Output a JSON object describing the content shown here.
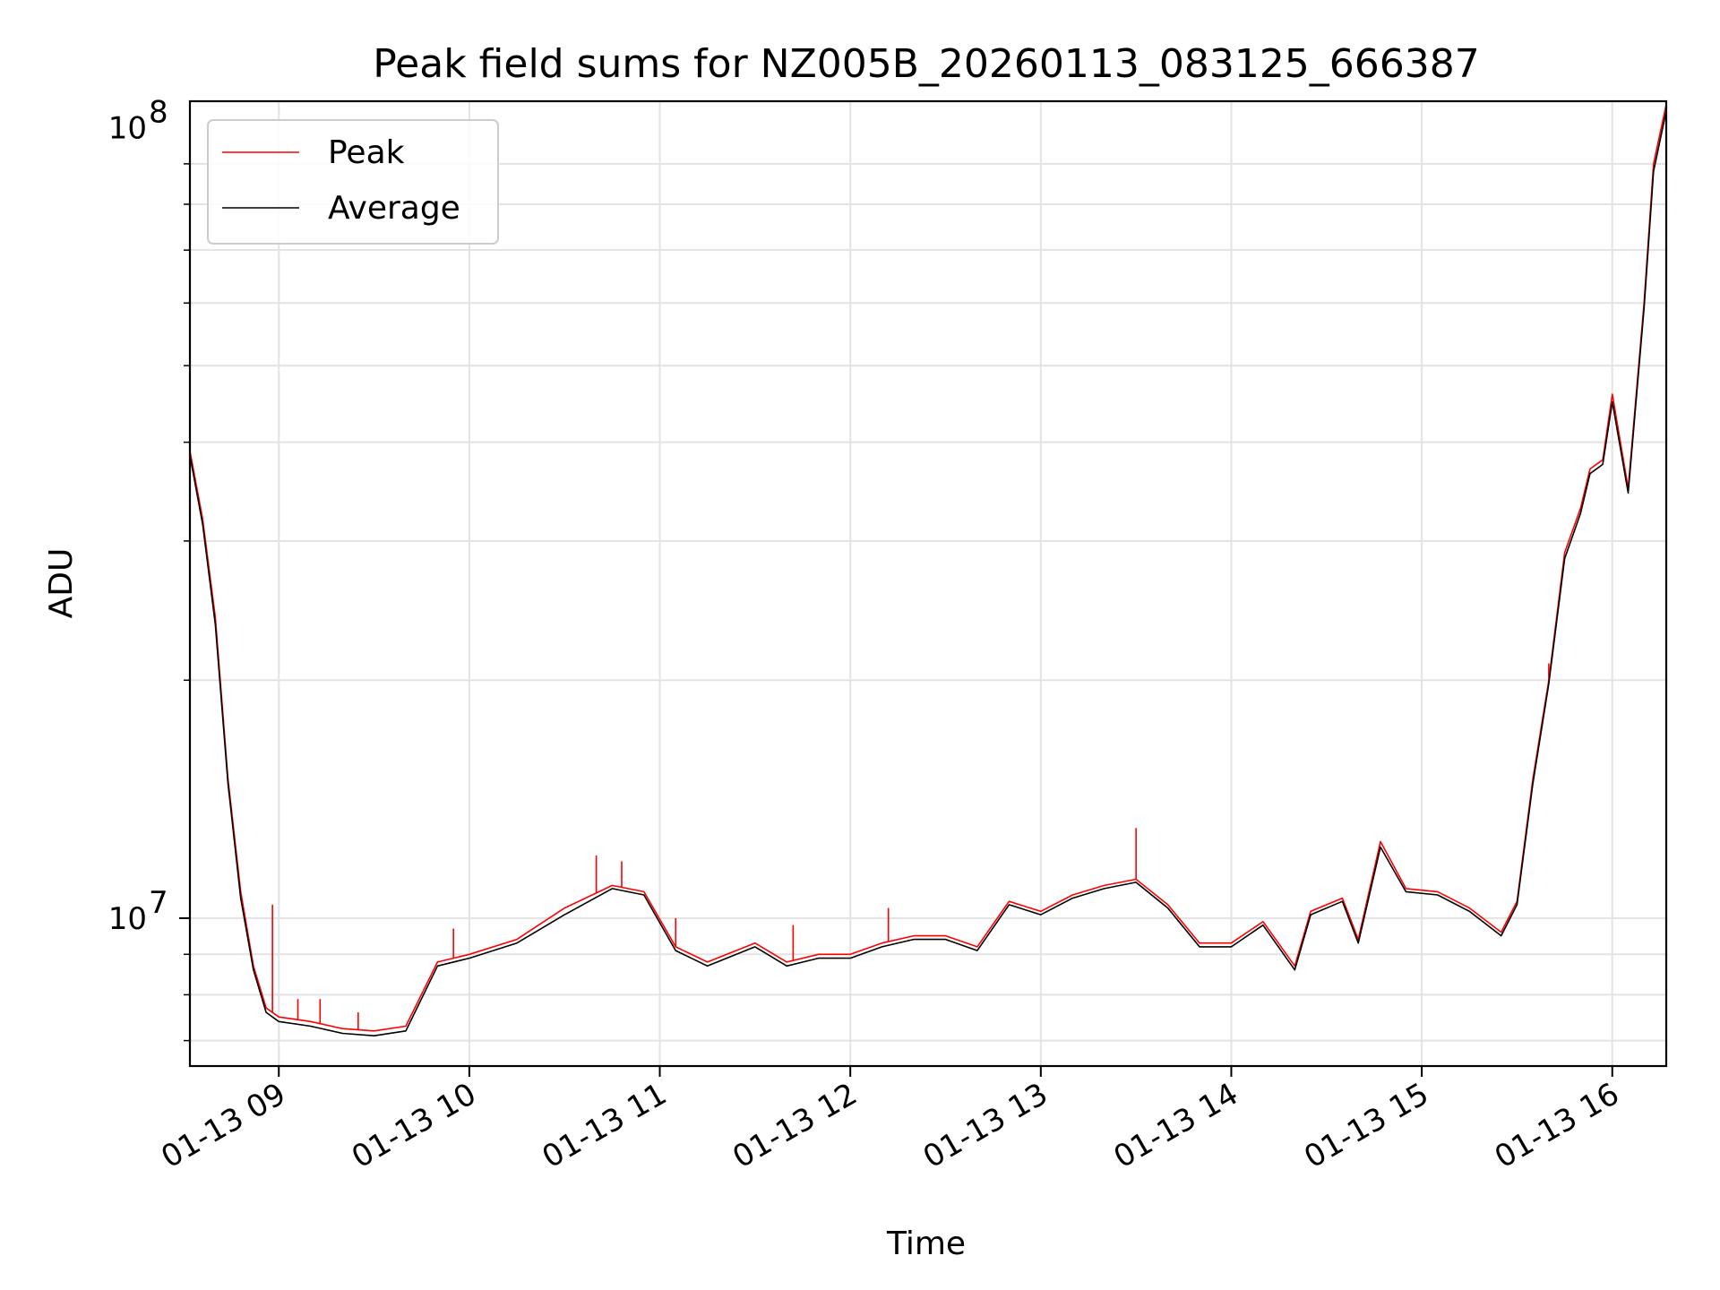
{
  "chart_data": {
    "type": "line",
    "title": "Peak field sums for NZ005B_20260113_083125_666387",
    "xlabel": "Time",
    "ylabel": "ADU",
    "yscale": "log",
    "ylim": [
      6500000,
      108000000
    ],
    "xlim": [
      "2026-01-13 08:32",
      "2026-01-13 16:17"
    ],
    "x_tick_labels": [
      "01-13 09",
      "01-13 10",
      "01-13 11",
      "01-13 12",
      "01-13 13",
      "01-13 14",
      "01-13 15",
      "01-13 16"
    ],
    "y_tick_labels": [
      {
        "base": "10",
        "exp": "7"
      },
      {
        "base": "10",
        "exp": "8"
      }
    ],
    "grid": true,
    "legend_position": "top-left",
    "colors": {
      "Peak": "#ff0000",
      "Average": "#000000"
    },
    "series": [
      {
        "name": "Peak",
        "x": [
          "2026-01-13 08:32",
          "2026-01-13 08:36",
          "2026-01-13 08:40",
          "2026-01-13 08:44",
          "2026-01-13 08:48",
          "2026-01-13 08:52",
          "2026-01-13 08:56",
          "2026-01-13 09:00",
          "2026-01-13 09:10",
          "2026-01-13 09:20",
          "2026-01-13 09:30",
          "2026-01-13 09:40",
          "2026-01-13 09:50",
          "2026-01-13 10:00",
          "2026-01-13 10:15",
          "2026-01-13 10:30",
          "2026-01-13 10:45",
          "2026-01-13 10:55",
          "2026-01-13 11:05",
          "2026-01-13 11:15",
          "2026-01-13 11:30",
          "2026-01-13 11:40",
          "2026-01-13 11:50",
          "2026-01-13 12:00",
          "2026-01-13 12:10",
          "2026-01-13 12:20",
          "2026-01-13 12:30",
          "2026-01-13 12:40",
          "2026-01-13 12:50",
          "2026-01-13 13:00",
          "2026-01-13 13:10",
          "2026-01-13 13:20",
          "2026-01-13 13:30",
          "2026-01-13 13:40",
          "2026-01-13 13:50",
          "2026-01-13 14:00",
          "2026-01-13 14:10",
          "2026-01-13 14:20",
          "2026-01-13 14:25",
          "2026-01-13 14:35",
          "2026-01-13 14:40",
          "2026-01-13 14:47",
          "2026-01-13 14:55",
          "2026-01-13 15:05",
          "2026-01-13 15:15",
          "2026-01-13 15:25",
          "2026-01-13 15:30",
          "2026-01-13 15:35",
          "2026-01-13 15:40",
          "2026-01-13 15:45",
          "2026-01-13 15:50",
          "2026-01-13 15:53",
          "2026-01-13 15:57",
          "2026-01-13 16:00",
          "2026-01-13 16:05",
          "2026-01-13 16:10",
          "2026-01-13 16:13",
          "2026-01-13 16:17"
        ],
        "y": [
          39000000,
          32000000,
          24000000,
          15000000,
          10800000,
          8700000,
          7700000,
          7500000,
          7400000,
          7250000,
          7200000,
          7300000,
          8800000,
          9000000,
          9400000,
          10300000,
          11000000,
          10800000,
          9200000,
          8800000,
          9300000,
          8800000,
          9000000,
          9000000,
          9300000,
          9500000,
          9500000,
          9200000,
          10500000,
          10200000,
          10700000,
          11000000,
          11200000,
          10400000,
          9300000,
          9300000,
          9900000,
          8700000,
          10200000,
          10600000,
          9400000,
          12500000,
          10900000,
          10800000,
          10300000,
          9600000,
          10500000,
          15000000,
          20000000,
          29000000,
          33000000,
          37000000,
          38000000,
          46000000,
          35000000,
          60000000,
          90000000,
          107000000
        ],
        "spikes": [
          {
            "x": "2026-01-13 08:58",
            "y": 10400000
          },
          {
            "x": "2026-01-13 09:06",
            "y": 7900000
          },
          {
            "x": "2026-01-13 09:13",
            "y": 7900000
          },
          {
            "x": "2026-01-13 09:25",
            "y": 7600000
          },
          {
            "x": "2026-01-13 09:45",
            "y": 8000000
          },
          {
            "x": "2026-01-13 09:55",
            "y": 9700000
          },
          {
            "x": "2026-01-13 10:40",
            "y": 12000000
          },
          {
            "x": "2026-01-13 10:48",
            "y": 11800000
          },
          {
            "x": "2026-01-13 11:05",
            "y": 10000000
          },
          {
            "x": "2026-01-13 11:42",
            "y": 9800000
          },
          {
            "x": "2026-01-13 12:12",
            "y": 10300000
          },
          {
            "x": "2026-01-13 13:30",
            "y": 13000000
          },
          {
            "x": "2026-01-13 15:40",
            "y": 21000000
          }
        ]
      },
      {
        "name": "Average",
        "x": [
          "2026-01-13 08:32",
          "2026-01-13 08:36",
          "2026-01-13 08:40",
          "2026-01-13 08:44",
          "2026-01-13 08:48",
          "2026-01-13 08:52",
          "2026-01-13 08:56",
          "2026-01-13 09:00",
          "2026-01-13 09:10",
          "2026-01-13 09:20",
          "2026-01-13 09:30",
          "2026-01-13 09:40",
          "2026-01-13 09:50",
          "2026-01-13 10:00",
          "2026-01-13 10:15",
          "2026-01-13 10:30",
          "2026-01-13 10:45",
          "2026-01-13 10:55",
          "2026-01-13 11:05",
          "2026-01-13 11:15",
          "2026-01-13 11:30",
          "2026-01-13 11:40",
          "2026-01-13 11:50",
          "2026-01-13 12:00",
          "2026-01-13 12:10",
          "2026-01-13 12:20",
          "2026-01-13 12:30",
          "2026-01-13 12:40",
          "2026-01-13 12:50",
          "2026-01-13 13:00",
          "2026-01-13 13:10",
          "2026-01-13 13:20",
          "2026-01-13 13:30",
          "2026-01-13 13:40",
          "2026-01-13 13:50",
          "2026-01-13 14:00",
          "2026-01-13 14:10",
          "2026-01-13 14:20",
          "2026-01-13 14:25",
          "2026-01-13 14:35",
          "2026-01-13 14:40",
          "2026-01-13 14:47",
          "2026-01-13 14:55",
          "2026-01-13 15:05",
          "2026-01-13 15:15",
          "2026-01-13 15:25",
          "2026-01-13 15:30",
          "2026-01-13 15:35",
          "2026-01-13 15:40",
          "2026-01-13 15:45",
          "2026-01-13 15:50",
          "2026-01-13 15:53",
          "2026-01-13 15:57",
          "2026-01-13 16:00",
          "2026-01-13 16:05",
          "2026-01-13 16:10",
          "2026-01-13 16:13",
          "2026-01-13 16:17"
        ],
        "y": [
          38500000,
          31500000,
          23500000,
          14800000,
          10600000,
          8600000,
          7600000,
          7400000,
          7300000,
          7150000,
          7100000,
          7200000,
          8700000,
          8900000,
          9300000,
          10100000,
          10900000,
          10700000,
          9100000,
          8700000,
          9200000,
          8700000,
          8900000,
          8900000,
          9200000,
          9400000,
          9400000,
          9100000,
          10400000,
          10100000,
          10600000,
          10900000,
          11100000,
          10300000,
          9200000,
          9200000,
          9800000,
          8600000,
          10100000,
          10500000,
          9300000,
          12300000,
          10800000,
          10700000,
          10200000,
          9500000,
          10400000,
          14800000,
          19800000,
          28500000,
          32500000,
          36500000,
          37500000,
          45000000,
          34500000,
          59000000,
          88000000,
          105000000
        ]
      }
    ]
  }
}
